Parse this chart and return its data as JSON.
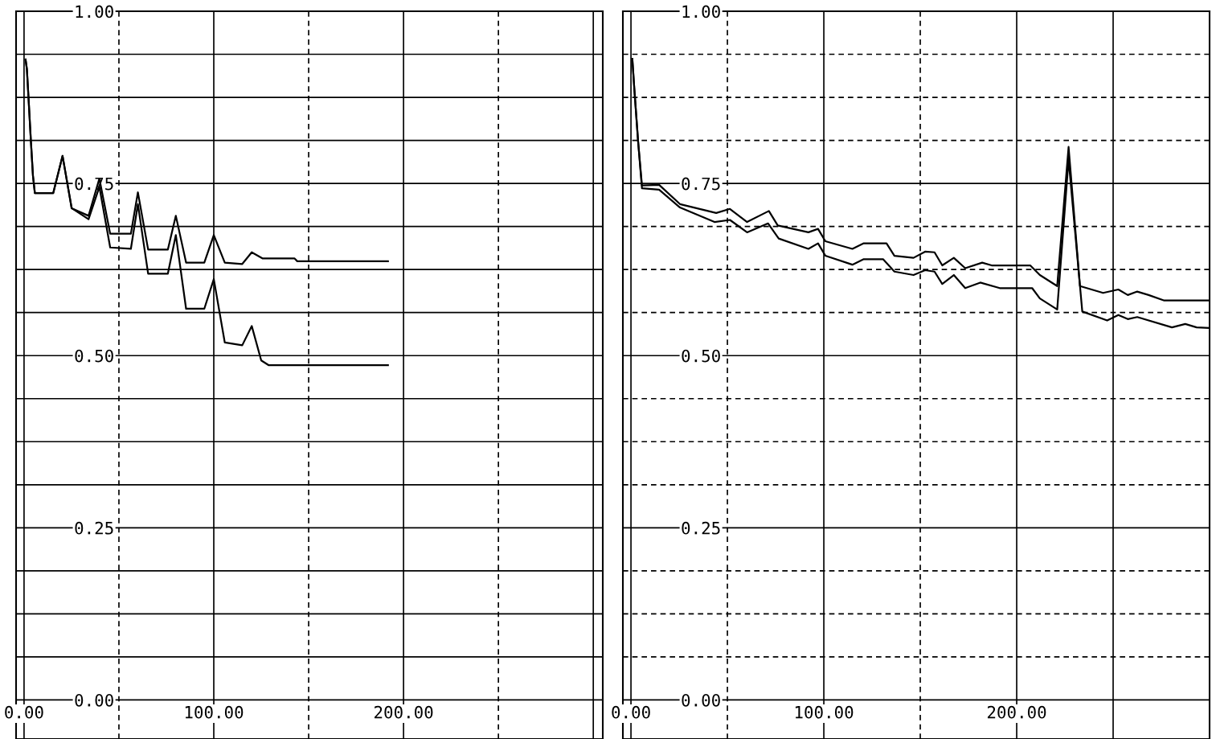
{
  "chart_data": [
    {
      "type": "line",
      "xlim": [
        -4.2,
        305
      ],
      "ylim": [
        -0.0567,
        1.0
      ],
      "xticks": [
        {
          "value": 0,
          "label": "0.00"
        },
        {
          "value": 50,
          "label": null
        },
        {
          "value": 100,
          "label": "100.00"
        },
        {
          "value": 150,
          "label": null
        },
        {
          "value": 200,
          "label": "200.00"
        },
        {
          "value": 250,
          "label": null
        },
        {
          "value": 300,
          "label": null
        }
      ],
      "yticks": [
        {
          "value": 0,
          "label": "0.00"
        },
        {
          "value": 0.0625,
          "label": null
        },
        {
          "value": 0.125,
          "label": null
        },
        {
          "value": 0.1875,
          "label": null
        },
        {
          "value": 0.25,
          "label": "0.25"
        },
        {
          "value": 0.3125,
          "label": null
        },
        {
          "value": 0.375,
          "label": null
        },
        {
          "value": 0.4375,
          "label": null
        },
        {
          "value": 0.5,
          "label": "0.50"
        },
        {
          "value": 0.5625,
          "label": null
        },
        {
          "value": 0.625,
          "label": null
        },
        {
          "value": 0.6875,
          "label": null
        },
        {
          "value": 0.75,
          "label": "0.75"
        },
        {
          "value": 0.8125,
          "label": null
        },
        {
          "value": 0.875,
          "label": null
        },
        {
          "value": 0.9375,
          "label": null
        },
        {
          "value": 1.0,
          "label": "1.00"
        }
      ],
      "grid": true,
      "series": [
        {
          "color": "#000000",
          "x": [
            0.8,
            1.5,
            2.5,
            3.6,
            4.7,
            5.7,
            15.4,
            20.3,
            25.1,
            34,
            39.7,
            45.4,
            56.3,
            60,
            65.4,
            75.8,
            80,
            85.4,
            95,
            100,
            105.8,
            115,
            120,
            125.8,
            142.6,
            144,
            191.8
          ],
          "values": [
            0.93,
            0.916,
            0.867,
            0.812,
            0.761,
            0.736,
            0.736,
            0.79,
            0.714,
            0.703,
            0.757,
            0.677,
            0.677,
            0.737,
            0.654,
            0.654,
            0.703,
            0.635,
            0.635,
            0.675,
            0.635,
            0.633,
            0.65,
            0.641,
            0.641,
            0.637,
            0.637
          ]
        },
        {
          "color": "#000000",
          "x": [
            0.8,
            1.5,
            2.5,
            3.6,
            4.7,
            5.7,
            15.4,
            20.3,
            25.1,
            34,
            39.7,
            45.4,
            56.3,
            60,
            65.4,
            75.8,
            80,
            85.4,
            95,
            100,
            105.8,
            115,
            120,
            125,
            129,
            191.8
          ],
          "values": [
            0.93,
            0.916,
            0.867,
            0.812,
            0.761,
            0.736,
            0.736,
            0.79,
            0.714,
            0.698,
            0.745,
            0.657,
            0.655,
            0.72,
            0.619,
            0.619,
            0.675,
            0.568,
            0.568,
            0.611,
            0.519,
            0.515,
            0.543,
            0.493,
            0.486,
            0.486
          ]
        }
      ]
    },
    {
      "type": "line",
      "xlim": [
        -4.2,
        300
      ],
      "ylim": [
        -0.0567,
        1.0
      ],
      "xticks": [
        {
          "value": 0,
          "label": "0.00"
        },
        {
          "value": 50,
          "label": null
        },
        {
          "value": 100,
          "label": "100.00"
        },
        {
          "value": 150,
          "label": null
        },
        {
          "value": 200,
          "label": "200.00"
        },
        {
          "value": 250,
          "label": null
        }
      ],
      "yticks": [
        {
          "value": 0,
          "label": "0.00"
        },
        {
          "value": 0.0625,
          "label": null
        },
        {
          "value": 0.125,
          "label": null
        },
        {
          "value": 0.1875,
          "label": null
        },
        {
          "value": 0.25,
          "label": "0.25"
        },
        {
          "value": 0.3125,
          "label": null
        },
        {
          "value": 0.375,
          "label": null
        },
        {
          "value": 0.4375,
          "label": null
        },
        {
          "value": 0.5,
          "label": "0.50"
        },
        {
          "value": 0.5625,
          "label": null
        },
        {
          "value": 0.625,
          "label": null
        },
        {
          "value": 0.6875,
          "label": null
        },
        {
          "value": 0.75,
          "label": "0.75"
        },
        {
          "value": 0.8125,
          "label": null
        },
        {
          "value": 0.875,
          "label": null
        },
        {
          "value": 0.9375,
          "label": null
        },
        {
          "value": 1.0,
          "label": "1.00"
        }
      ],
      "grid": true,
      "series": [
        {
          "color": "#000000",
          "x": [
            0.7,
            1.7,
            3.7,
            5.7,
            14.6,
            25.4,
            44.2,
            51.3,
            60.2,
            71.5,
            76.1,
            92,
            97,
            100.8,
            114.8,
            120.7,
            132.5,
            136.6,
            146.5,
            152.5,
            157.4,
            161.4,
            167.4,
            173.3,
            182.1,
            187,
            202,
            207,
            212,
            221,
            226.9,
            232.8,
            244.8,
            252.7,
            257.6,
            262.5,
            268.4,
            276.5,
            300
          ],
          "values": [
            0.931,
            0.889,
            0.811,
            0.747,
            0.748,
            0.72,
            0.707,
            0.713,
            0.694,
            0.71,
            0.689,
            0.679,
            0.684,
            0.666,
            0.655,
            0.663,
            0.663,
            0.645,
            0.642,
            0.651,
            0.65,
            0.631,
            0.642,
            0.627,
            0.635,
            0.631,
            0.631,
            0.631,
            0.617,
            0.601,
            0.803,
            0.601,
            0.591,
            0.596,
            0.588,
            0.593,
            0.588,
            0.58,
            0.58
          ]
        },
        {
          "color": "#000000",
          "x": [
            0.7,
            1.7,
            3.7,
            5.7,
            14.6,
            25.4,
            43.3,
            51.3,
            60.2,
            71.1,
            76.6,
            92,
            97,
            100.8,
            114.8,
            120.7,
            130.7,
            136.6,
            146.5,
            152.5,
            157.4,
            161.4,
            167.4,
            173.3,
            181.1,
            191.2,
            208,
            212,
            221,
            226.9,
            234,
            246.9,
            252.7,
            257.6,
            262.5,
            280.5,
            287.4,
            293.3,
            300
          ],
          "values": [
            0.931,
            0.889,
            0.811,
            0.743,
            0.741,
            0.715,
            0.694,
            0.697,
            0.679,
            0.692,
            0.67,
            0.655,
            0.663,
            0.645,
            0.632,
            0.64,
            0.64,
            0.622,
            0.617,
            0.624,
            0.622,
            0.604,
            0.617,
            0.598,
            0.606,
            0.598,
            0.598,
            0.583,
            0.567,
            0.785,
            0.564,
            0.551,
            0.559,
            0.553,
            0.556,
            0.541,
            0.546,
            0.541,
            0.54
          ]
        }
      ]
    }
  ]
}
